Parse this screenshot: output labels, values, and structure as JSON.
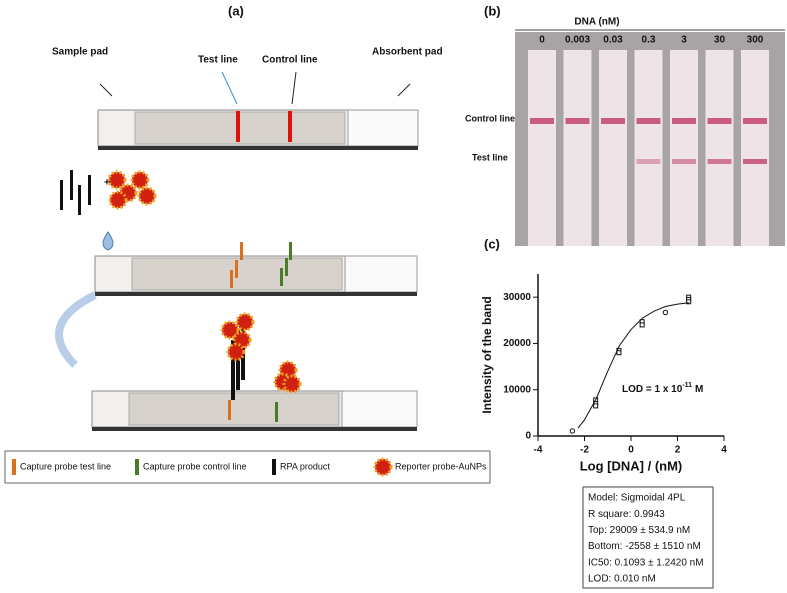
{
  "figure": {
    "panel_labels": [
      "(a)",
      "(b)",
      "(c)"
    ],
    "panel_a": {
      "labels": {
        "sample_pad": "Sample pad",
        "test_line": "Test line",
        "control_line": "Control line",
        "absorbent_pad": "Absorbent pad"
      },
      "legend": [
        "Capture probe test line",
        "Capture probe control line",
        "RPA product",
        "Reporter probe-AuNPs"
      ]
    },
    "panel_b": {
      "header": "DNA (nM)",
      "concentrations": [
        0,
        0.003,
        0.03,
        0.3,
        3,
        30,
        300
      ],
      "control_line": "Control line",
      "test_line": "Test line"
    },
    "fit_box": [
      "Model: Sigmoidal 4PL",
      "R square: 0.9943",
      "Top: 29009 ± 534.9 nM",
      "Bottom: -2558 ± 1510 nM",
      "IC50: 0.1093 ± 1.2420 nM",
      "LOD: 0.010 nM"
    ]
  },
  "chart_data": {
    "type": "scatter",
    "x_label": "Log [DNA] / (nM)",
    "y_label": "Intensity of the band",
    "annotation": {
      "text": "LOD = 1 x 10",
      "exponent": "-11",
      "unit": "M"
    },
    "xlim": [
      -4,
      4
    ],
    "xticks": [
      -4,
      -2,
      0,
      2,
      4
    ],
    "ylim": [
      0,
      35000
    ],
    "yticks": [
      0,
      10000,
      20000,
      30000
    ],
    "series": [
      {
        "marker": "square",
        "color": "#111111",
        "x": [
          -1.52,
          -1.52,
          -1.52,
          -0.52,
          -0.52,
          0.48,
          0.48,
          2.48,
          2.48,
          2.48
        ],
        "values": [
          7800,
          7000,
          6500,
          18500,
          18000,
          24700,
          24000,
          30000,
          29500,
          29000
        ]
      },
      {
        "marker": "circle",
        "color": "#111111",
        "x": [
          -2.52,
          1.48
        ],
        "values": [
          1100,
          26700
        ]
      },
      {
        "marker": "line",
        "color": "#111111",
        "x": [
          -2.28,
          -2,
          -1.5,
          -1,
          -0.5,
          0,
          0.5,
          1,
          1.5,
          2,
          2.5
        ],
        "values": [
          1700,
          3500,
          8000,
          14000,
          19500,
          23000,
          25500,
          27000,
          28000,
          28500,
          28800
        ]
      }
    ]
  }
}
